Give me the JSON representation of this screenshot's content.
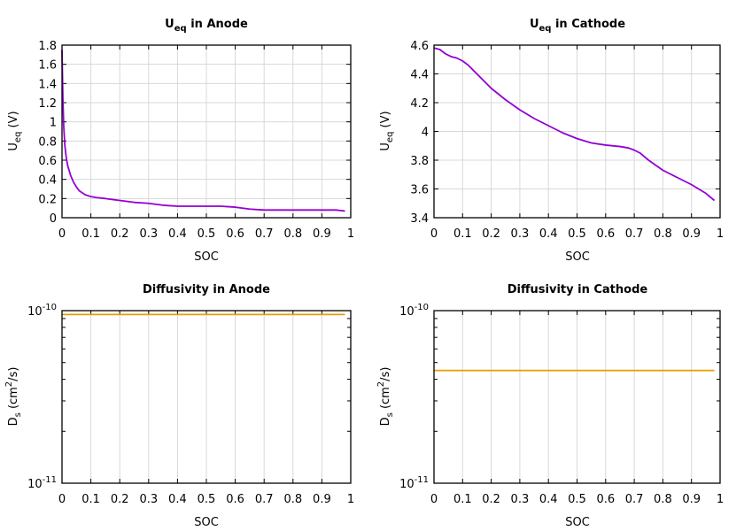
{
  "chart_data": [
    {
      "id": "anode-ueq",
      "type": "line",
      "title": {
        "base": "U",
        "sub": "eq",
        "rest": " in Anode"
      },
      "xlabel": "SOC",
      "ylabel": {
        "base": "U",
        "sub": "eq",
        "rest": " (V)"
      },
      "xlim": [
        0,
        1
      ],
      "ylim": [
        0,
        1.8
      ],
      "xticks": [
        "0",
        "0.1",
        "0.2",
        "0.3",
        "0.4",
        "0.5",
        "0.6",
        "0.7",
        "0.8",
        "0.9",
        "1"
      ],
      "yticks": [
        "0",
        "0.2",
        "0.4",
        "0.6",
        "0.8",
        "1",
        "1.2",
        "1.4",
        "1.6",
        "1.8"
      ],
      "grid": true,
      "series": [
        {
          "color": "#9400d3",
          "x": [
            0,
            0.003,
            0.006,
            0.01,
            0.015,
            0.02,
            0.03,
            0.04,
            0.05,
            0.06,
            0.08,
            0.1,
            0.12,
            0.15,
            0.2,
            0.25,
            0.3,
            0.35,
            0.4,
            0.45,
            0.5,
            0.55,
            0.6,
            0.65,
            0.7,
            0.75,
            0.8,
            0.85,
            0.9,
            0.95,
            0.98
          ],
          "y": [
            1.75,
            1.25,
            0.95,
            0.75,
            0.62,
            0.54,
            0.44,
            0.37,
            0.32,
            0.28,
            0.24,
            0.22,
            0.21,
            0.2,
            0.18,
            0.16,
            0.15,
            0.13,
            0.12,
            0.12,
            0.12,
            0.12,
            0.11,
            0.09,
            0.08,
            0.08,
            0.08,
            0.08,
            0.08,
            0.08,
            0.07
          ]
        }
      ]
    },
    {
      "id": "cathode-ueq",
      "type": "line",
      "title": {
        "base": "U",
        "sub": "eq",
        "rest": " in Cathode"
      },
      "xlabel": "SOC",
      "ylabel": {
        "base": "U",
        "sub": "eq",
        "rest": " (V)"
      },
      "xlim": [
        0,
        1
      ],
      "ylim": [
        3.4,
        4.6
      ],
      "xticks": [
        "0",
        "0.1",
        "0.2",
        "0.3",
        "0.4",
        "0.5",
        "0.6",
        "0.7",
        "0.8",
        "0.9",
        "1"
      ],
      "yticks": [
        "3.4",
        "3.6",
        "3.8",
        "4",
        "4.2",
        "4.4",
        "4.6"
      ],
      "grid": true,
      "series": [
        {
          "color": "#9400d3",
          "x": [
            0,
            0.02,
            0.04,
            0.06,
            0.08,
            0.1,
            0.12,
            0.15,
            0.2,
            0.25,
            0.3,
            0.35,
            0.4,
            0.45,
            0.5,
            0.55,
            0.6,
            0.65,
            0.68,
            0.7,
            0.72,
            0.75,
            0.8,
            0.85,
            0.9,
            0.95,
            0.98
          ],
          "y": [
            4.58,
            4.57,
            4.54,
            4.52,
            4.51,
            4.49,
            4.46,
            4.4,
            4.3,
            4.22,
            4.15,
            4.09,
            4.04,
            3.99,
            3.95,
            3.92,
            3.905,
            3.895,
            3.885,
            3.87,
            3.85,
            3.8,
            3.73,
            3.68,
            3.63,
            3.57,
            3.52
          ]
        }
      ]
    },
    {
      "id": "anode-diffusivity",
      "type": "line",
      "title": {
        "base": "Diffusivity in Anode",
        "sub": "",
        "rest": ""
      },
      "xlabel": "SOC",
      "ylabel": {
        "base": "D",
        "sub": "s",
        "rest": " (cm",
        "sup": "2",
        "rest2": "/s)"
      },
      "xlim": [
        0,
        1
      ],
      "ylim": [
        1e-11,
        1e-10
      ],
      "ylog": true,
      "xticks": [
        "0",
        "0.1",
        "0.2",
        "0.3",
        "0.4",
        "0.5",
        "0.6",
        "0.7",
        "0.8",
        "0.9",
        "1"
      ],
      "yticks": [
        {
          "base": "10",
          "exp": "-11"
        },
        {
          "base": "10",
          "exp": "-10"
        }
      ],
      "grid": true,
      "series": [
        {
          "color": "#e69f00",
          "x": [
            0,
            0.98
          ],
          "y": [
            9.5e-11,
            9.5e-11
          ]
        }
      ]
    },
    {
      "id": "cathode-diffusivity",
      "type": "line",
      "title": {
        "base": "Diffusivity in Cathode",
        "sub": "",
        "rest": ""
      },
      "xlabel": "SOC",
      "ylabel": {
        "base": "D",
        "sub": "s",
        "rest": " (cm",
        "sup": "2",
        "rest2": "/s)"
      },
      "xlim": [
        0,
        1
      ],
      "ylim": [
        1e-11,
        1e-10
      ],
      "ylog": true,
      "xticks": [
        "0",
        "0.1",
        "0.2",
        "0.3",
        "0.4",
        "0.5",
        "0.6",
        "0.7",
        "0.8",
        "0.9",
        "1"
      ],
      "yticks": [
        {
          "base": "10",
          "exp": "-11"
        },
        {
          "base": "10",
          "exp": "-10"
        }
      ],
      "grid": true,
      "series": [
        {
          "color": "#e69f00",
          "x": [
            0,
            0.98
          ],
          "y": [
            4.5e-11,
            4.5e-11
          ]
        }
      ]
    }
  ]
}
